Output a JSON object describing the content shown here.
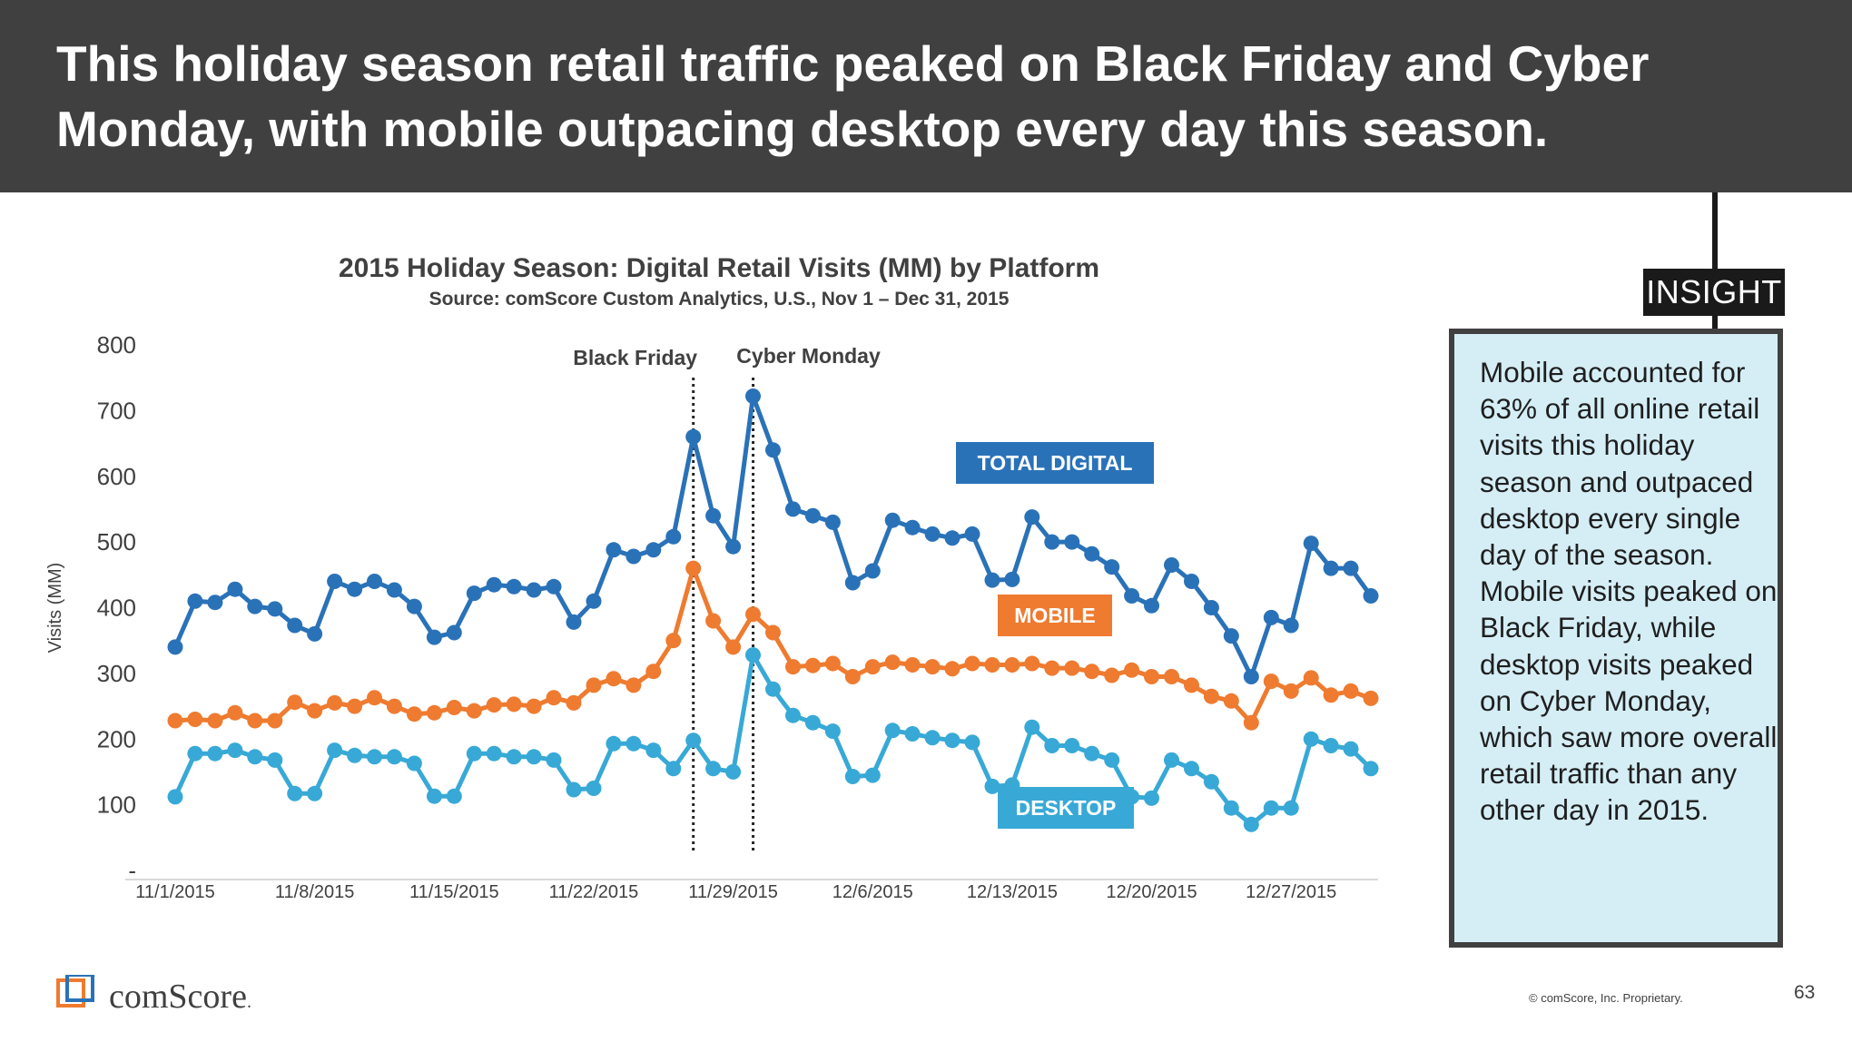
{
  "header": {
    "title": "This holiday season retail traffic peaked on Black Friday and Cyber Monday, with mobile outpacing desktop every day this season."
  },
  "insight": {
    "tag": "INSIGHT",
    "text": "Mobile accounted for 63% of all online retail visits this holiday season and outpaced desktop every single day of the season. Mobile visits peaked on Black Friday, while desktop visits peaked on Cyber Monday, which saw more overall retail traffic than any other day in 2015."
  },
  "footer": {
    "brand": "comScore",
    "brand_suffix": ".",
    "copyright": "© comScore, Inc. Proprietary.",
    "page_number": "63"
  },
  "colors": {
    "total": "#2a72b8",
    "mobile": "#ee7b30",
    "desktop": "#38a9d6",
    "header_bg": "#404040",
    "insight_bg": "#d5eef6"
  },
  "chart_data": {
    "type": "line",
    "title": "2015 Holiday Season: Digital Retail Visits (MM) by Platform",
    "subtitle": "Source: comScore Custom Analytics, U.S., Nov 1 – Dec 31, 2015",
    "ylabel": "Visits (MM)",
    "ylim": [
      0,
      800
    ],
    "yticks": [
      0,
      100,
      200,
      300,
      400,
      500,
      600,
      700,
      800
    ],
    "ytick_labels": [
      "-",
      "100",
      "200",
      "300",
      "400",
      "500",
      "600",
      "700",
      "800"
    ],
    "x_tick_labels": [
      "11/1/2015",
      "11/8/2015",
      "11/15/2015",
      "11/22/2015",
      "11/29/2015",
      "12/6/2015",
      "12/13/2015",
      "12/20/2015",
      "12/27/2015"
    ],
    "x_tick_every": 7,
    "start_date": "11/1/2015",
    "days": 61,
    "annotations": [
      {
        "label": "Black Friday",
        "day_index": 26
      },
      {
        "label": "Cyber Monday",
        "day_index": 29
      }
    ],
    "series": [
      {
        "name": "TOTAL DIGITAL",
        "key": "total",
        "values": [
          340,
          410,
          408,
          428,
          402,
          398,
          373,
          360,
          440,
          428,
          440,
          427,
          402,
          355,
          362,
          422,
          435,
          432,
          427,
          432,
          378,
          410,
          488,
          478,
          488,
          508,
          660,
          540,
          493,
          722,
          640,
          550,
          540,
          530,
          438,
          456,
          533,
          522,
          512,
          506,
          512,
          442,
          443,
          538,
          500,
          500,
          482,
          462,
          418,
          403,
          465,
          440,
          400,
          357,
          295,
          385,
          373,
          498,
          460,
          460,
          418
        ]
      },
      {
        "name": "MOBILE",
        "key": "mobile",
        "values": [
          228,
          230,
          228,
          240,
          228,
          228,
          256,
          243,
          255,
          250,
          263,
          250,
          238,
          240,
          248,
          243,
          252,
          253,
          250,
          263,
          255,
          282,
          292,
          282,
          303,
          350,
          460,
          380,
          340,
          390,
          362,
          310,
          312,
          315,
          295,
          310,
          317,
          313,
          310,
          307,
          315,
          313,
          313,
          315,
          308,
          308,
          303,
          297,
          305,
          295,
          295,
          282,
          265,
          258,
          225,
          288,
          273,
          293,
          267,
          273,
          262
        ]
      },
      {
        "name": "DESKTOP",
        "key": "desktop",
        "values": [
          112,
          178,
          178,
          183,
          173,
          168,
          117,
          117,
          183,
          175,
          173,
          173,
          163,
          113,
          113,
          178,
          178,
          173,
          173,
          168,
          123,
          125,
          193,
          193,
          183,
          155,
          198,
          155,
          150,
          328,
          276,
          236,
          225,
          212,
          143,
          145,
          213,
          208,
          202,
          198,
          195,
          128,
          130,
          218,
          190,
          190,
          178,
          168,
          112,
          110,
          168,
          155,
          135,
          95,
          70,
          95,
          95,
          200,
          190,
          185,
          155
        ]
      }
    ],
    "labels": {
      "total": "TOTAL DIGITAL",
      "mobile": "MOBILE",
      "desktop": "DESKTOP"
    }
  }
}
